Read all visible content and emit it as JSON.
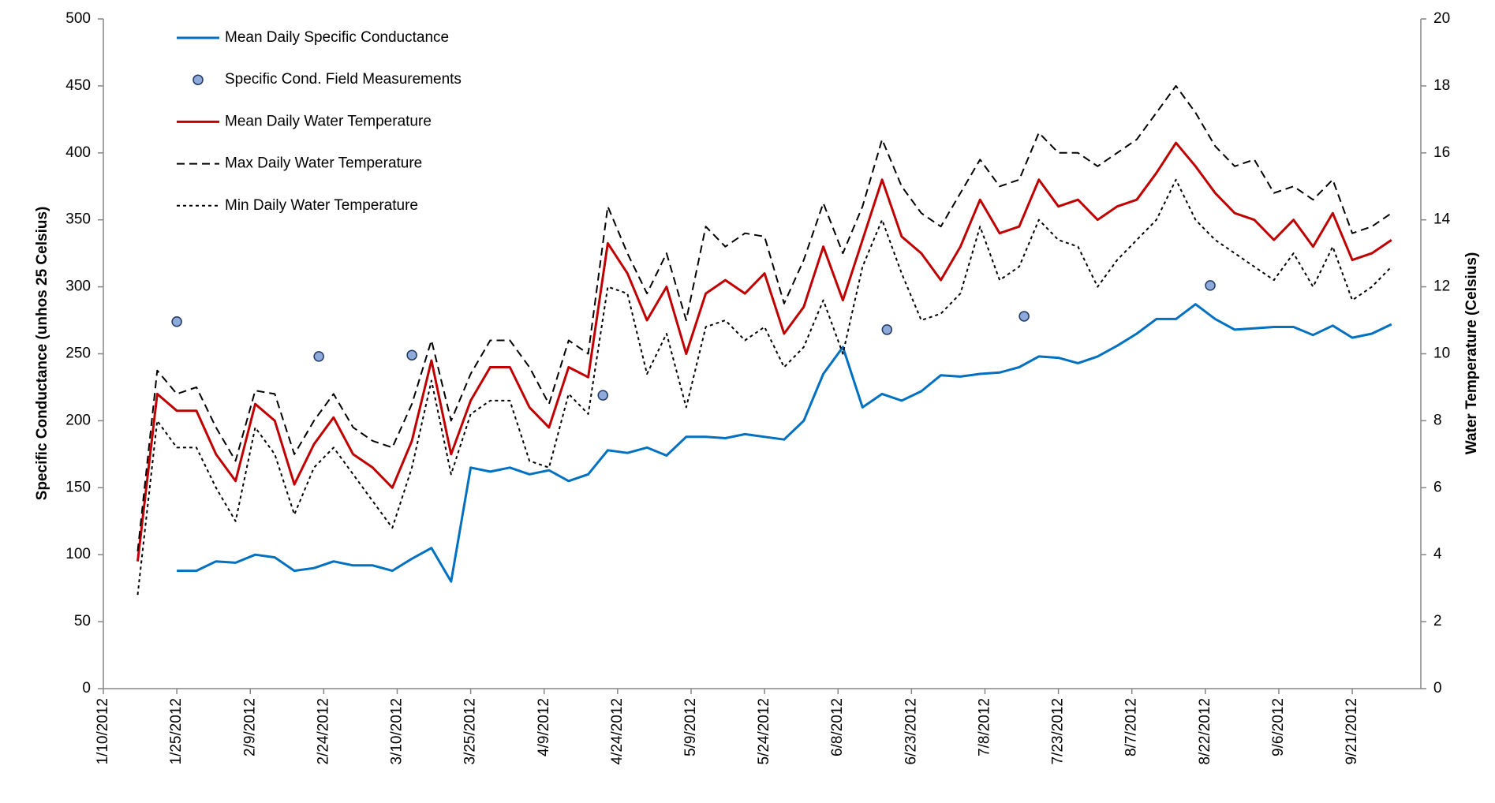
{
  "chart_data": {
    "type": "line",
    "ylabel": "Specific Conductance (unhos 25 Celsius)",
    "y2label": "Water Temperature (Celsius)",
    "xlim": [
      "1/10/2012",
      "10/5/2012"
    ],
    "xticks": [
      "1/10/2012",
      "1/25/2012",
      "2/9/2012",
      "2/24/2012",
      "3/10/2012",
      "3/25/2012",
      "4/9/2012",
      "4/24/2012",
      "5/9/2012",
      "5/24/2012",
      "6/8/2012",
      "6/23/2012",
      "7/8/2012",
      "7/23/2012",
      "8/7/2012",
      "8/22/2012",
      "9/6/2012",
      "9/21/2012"
    ],
    "ylim": [
      0,
      500
    ],
    "yticks": [
      0,
      50,
      100,
      150,
      200,
      250,
      300,
      350,
      400,
      450,
      500
    ],
    "y2lim": [
      0,
      20
    ],
    "y2ticks": [
      0,
      2,
      4,
      6,
      8,
      10,
      12,
      14,
      16,
      18,
      20
    ],
    "grid": false,
    "legend": "upper left",
    "x": [
      "1/17/2012",
      "1/21/2012",
      "1/25/2012",
      "1/29/2012",
      "2/2/2012",
      "2/6/2012",
      "2/10/2012",
      "2/14/2012",
      "2/18/2012",
      "2/22/2012",
      "2/26/2012",
      "3/1/2012",
      "3/5/2012",
      "3/9/2012",
      "3/13/2012",
      "3/17/2012",
      "3/21/2012",
      "3/25/2012",
      "3/29/2012",
      "4/2/2012",
      "4/6/2012",
      "4/10/2012",
      "4/14/2012",
      "4/18/2012",
      "4/22/2012",
      "4/26/2012",
      "4/30/2012",
      "5/4/2012",
      "5/8/2012",
      "5/12/2012",
      "5/16/2012",
      "5/20/2012",
      "5/24/2012",
      "5/28/2012",
      "6/1/2012",
      "6/5/2012",
      "6/9/2012",
      "6/13/2012",
      "6/17/2012",
      "6/21/2012",
      "6/25/2012",
      "6/29/2012",
      "7/3/2012",
      "7/7/2012",
      "7/11/2012",
      "7/15/2012",
      "7/19/2012",
      "7/23/2012",
      "7/27/2012",
      "7/31/2012",
      "8/4/2012",
      "8/8/2012",
      "8/12/2012",
      "8/16/2012",
      "8/20/2012",
      "8/24/2012",
      "8/28/2012",
      "9/1/2012",
      "9/5/2012",
      "9/9/2012",
      "9/13/2012",
      "9/17/2012",
      "9/21/2012",
      "9/25/2012",
      "9/29/2012"
    ],
    "series": [
      {
        "name": "Mean Daily Specific Conductance",
        "color": "#0070c0",
        "dash": "solid",
        "width": 3,
        "values": [
          null,
          null,
          88,
          88,
          95,
          94,
          100,
          98,
          88,
          90,
          95,
          92,
          92,
          88,
          97,
          105,
          80,
          165,
          162,
          165,
          160,
          163,
          155,
          160,
          178,
          176,
          180,
          174,
          188,
          188,
          187,
          190,
          188,
          186,
          200,
          235,
          255,
          210,
          220,
          215,
          222,
          234,
          233,
          235,
          236,
          240,
          248,
          247,
          243,
          248,
          256,
          265,
          276,
          276,
          287,
          276,
          268,
          269,
          270,
          270,
          264,
          271,
          262,
          265,
          272
        ]
      },
      {
        "name": "Specific Cond. Field Measurements",
        "type": "scatter",
        "color": "#8eaadb",
        "x": [
          "1/25/2012",
          "2/23/2012",
          "3/13/2012",
          "4/21/2012",
          "6/18/2012",
          "7/16/2012",
          "8/23/2012"
        ],
        "values": [
          274,
          248,
          249,
          219,
          268,
          278,
          301
        ]
      },
      {
        "name": "Mean Daily Water Temperature",
        "color": "#c00000",
        "dash": "solid",
        "width": 3,
        "axis": "y2",
        "values": [
          3.8,
          8.8,
          8.3,
          8.3,
          7.0,
          6.2,
          8.5,
          8.0,
          6.1,
          7.3,
          8.1,
          7.0,
          6.6,
          6.0,
          7.4,
          9.8,
          7.0,
          8.6,
          9.6,
          9.6,
          8.4,
          7.8,
          9.6,
          9.3,
          13.3,
          12.4,
          11.0,
          12.0,
          10.0,
          11.8,
          12.2,
          11.8,
          12.4,
          10.6,
          11.4,
          13.2,
          11.6,
          13.4,
          15.2,
          13.5,
          13.0,
          12.2,
          13.2,
          14.6,
          13.6,
          13.8,
          15.2,
          14.4,
          14.6,
          14.0,
          14.4,
          14.6,
          15.4,
          16.3,
          15.6,
          14.8,
          14.2,
          14.0,
          13.4,
          14.0,
          13.2,
          14.2,
          12.8,
          13.0,
          13.4
        ]
      },
      {
        "name": "Max Daily Water Temperature",
        "color": "#000000",
        "dash": "dashed",
        "width": 2,
        "axis": "y2",
        "values": [
          4.1,
          9.5,
          8.8,
          9.0,
          7.8,
          6.8,
          8.9,
          8.8,
          7.0,
          8.0,
          8.8,
          7.8,
          7.4,
          7.2,
          8.5,
          10.4,
          8.0,
          9.4,
          10.4,
          10.4,
          9.6,
          8.5,
          10.4,
          10.0,
          14.4,
          13.0,
          11.8,
          13.0,
          11.0,
          13.8,
          13.2,
          13.6,
          13.5,
          11.5,
          12.8,
          14.5,
          13.0,
          14.4,
          16.4,
          15.0,
          14.2,
          13.8,
          14.8,
          15.8,
          15.0,
          15.2,
          16.6,
          16.0,
          16.0,
          15.6,
          16.0,
          16.4,
          17.2,
          18.0,
          17.2,
          16.2,
          15.6,
          15.8,
          14.8,
          15.0,
          14.6,
          15.2,
          13.6,
          13.8,
          14.2
        ]
      },
      {
        "name": "Min Daily Water Temperature",
        "color": "#000000",
        "dash": "dotted",
        "width": 2,
        "axis": "y2",
        "values": [
          2.8,
          8.0,
          7.2,
          7.2,
          6.0,
          5.0,
          7.8,
          7.0,
          5.2,
          6.6,
          7.2,
          6.4,
          5.6,
          4.8,
          6.6,
          9.2,
          6.4,
          8.2,
          8.6,
          8.6,
          6.8,
          6.6,
          8.8,
          8.2,
          12.0,
          11.8,
          9.4,
          10.6,
          8.4,
          10.8,
          11.0,
          10.4,
          10.8,
          9.6,
          10.2,
          11.6,
          10.0,
          12.6,
          14.0,
          12.4,
          11.0,
          11.2,
          11.8,
          13.8,
          12.2,
          12.6,
          14.0,
          13.4,
          13.2,
          12.0,
          12.8,
          13.4,
          14.0,
          15.2,
          14.0,
          13.4,
          13.0,
          12.6,
          12.2,
          13.0,
          12.0,
          13.2,
          11.6,
          12.0,
          12.6
        ]
      }
    ]
  }
}
